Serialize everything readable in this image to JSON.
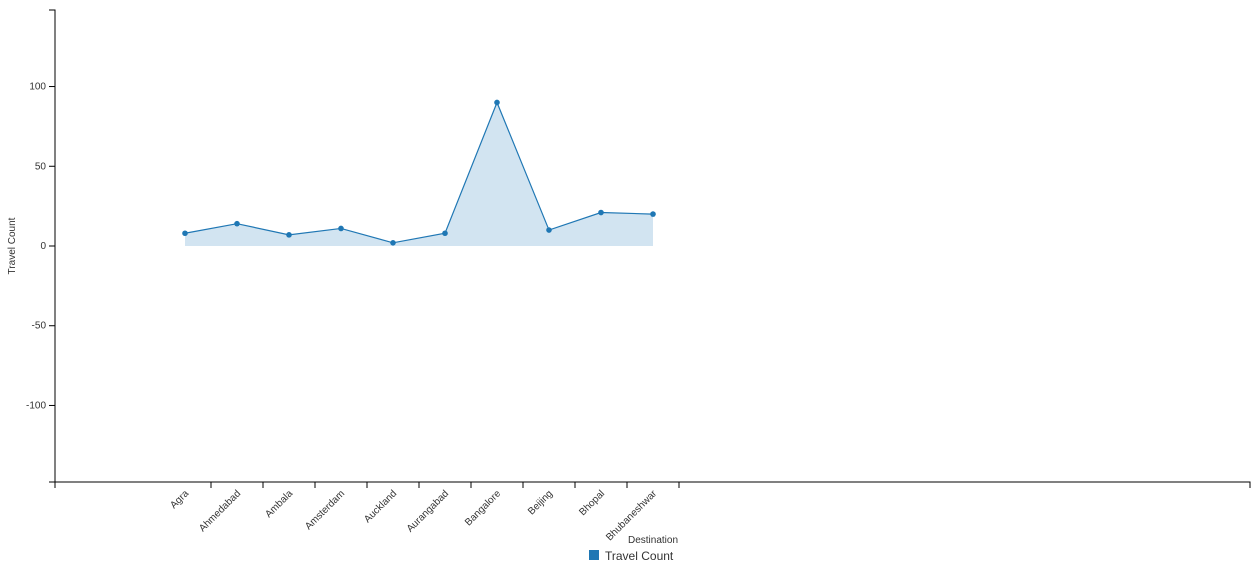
{
  "chart_data": {
    "type": "area",
    "x_label": "Destination",
    "y_label": "Travel Count",
    "categories": [
      "Agra",
      "Ahmedabad",
      "Ambala",
      "Amsterdam",
      "Auckland",
      "Aurangabad",
      "Bangalore",
      "Beijing",
      "Bhopal",
      "Bhubaneshwar"
    ],
    "series": [
      {
        "name": "Travel Count",
        "color": "#1f77b4",
        "fill": "#d2e4f1",
        "values": [
          8,
          14,
          7,
          11,
          2,
          8,
          90,
          10,
          21,
          20
        ]
      }
    ],
    "ylim": [
      -148,
      148
    ],
    "yticks": [
      -100,
      -50,
      0,
      50,
      100
    ],
    "grid": false,
    "legend": "bottom"
  }
}
